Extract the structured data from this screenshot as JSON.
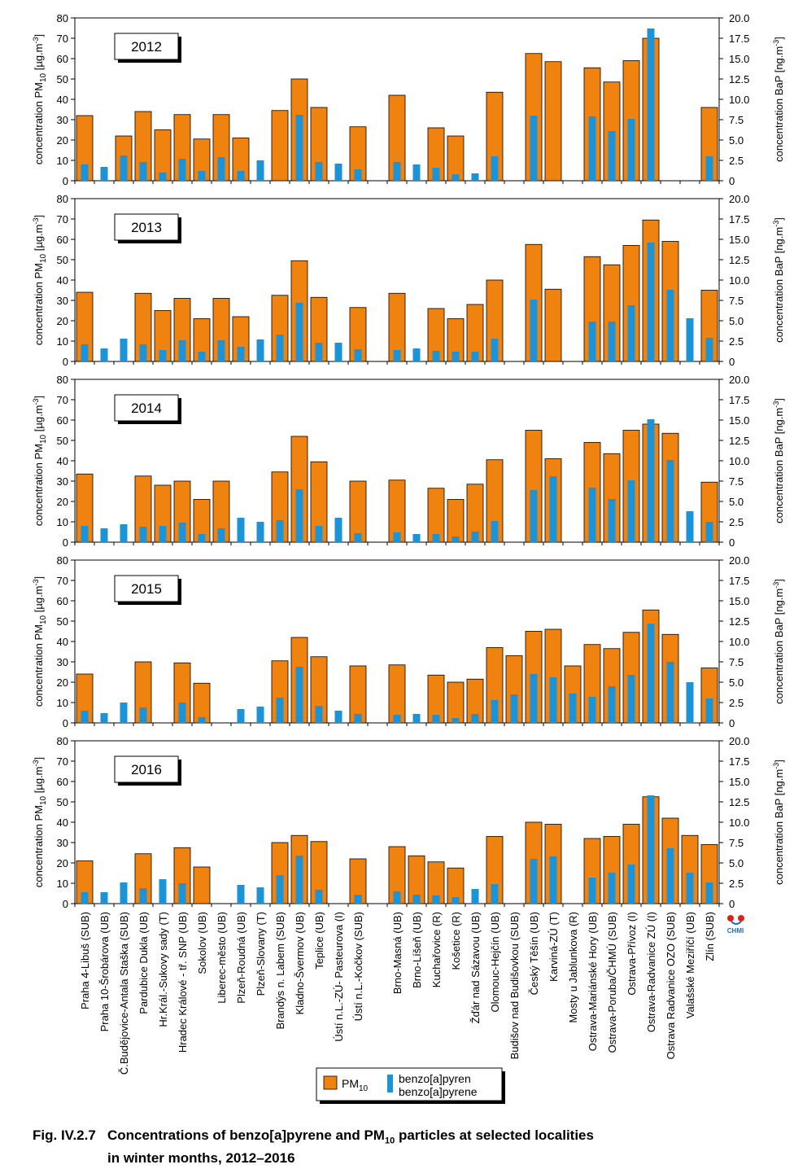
{
  "chart_data": {
    "type": "bar",
    "left_axis_label": "concentration PM",
    "left_axis_sub": "10",
    "left_axis_unit": "[µg.m",
    "left_axis_sup": "-3",
    "left_axis_close": "]",
    "right_axis_label": "concentration BaP [ng.m",
    "right_axis_sup": "-3",
    "right_axis_close": "]",
    "left_ylim": [
      0,
      80
    ],
    "right_ylim": [
      0,
      20
    ],
    "left_ticks": [
      "0",
      "10",
      "20",
      "30",
      "40",
      "50",
      "60",
      "70",
      "80"
    ],
    "right_ticks": [
      "0",
      "2.5",
      "5.0",
      "7.5",
      "10.0",
      "12.5",
      "15.0",
      "17.5",
      "20.0"
    ],
    "categories": [
      "Praha 4-Libuš (SUB)",
      "Praha 10-Šrobárova (UB)",
      "Č.Budějovice-Antala Staška (SUB)",
      "Pardubice Dukla (UB)",
      "Hr.Král.-Sukovy sady (T)",
      "Hradec Králové - tř. SNP (UB)",
      "Sokolov (UB)",
      "Liberec-město (UB)",
      "Plzeň-Roudná (UB)",
      "Plzeň-Slovany (T)",
      "Brandýs n. Labem (SUB)",
      "Kladno-Švermov (UB)",
      "Teplice (UB)",
      "Ústí n.L.-ZÚ- Pasteurova (I)",
      "Ústí n.L.-Kočkov (SUB)",
      "",
      "Brno-Masná (UB)",
      "Brno-Líšeň (UB)",
      "Kuchařovice (R)",
      "Košetice (R)",
      "Žďár nad Sázavou (UB)",
      "Olomouc-Hejčín (UB)",
      "Budišov nad Budišovkou (SUB)",
      "Český Těšín (UB)",
      "Karviná-ZÚ (T)",
      "Mosty u Jablunkova (R)",
      "Ostrava-Mariánské Hory (UB)",
      "Ostrava-Poruba/ČHMÚ (SUB)",
      "Ostrava-Přívoz (I)",
      "Ostrava-Radvanice ZÚ (I)",
      "Ostrava Radvanice OZO (SUB)",
      "Valašské Meziříčí (UB)",
      "Zlín (SUB)"
    ],
    "panels": [
      {
        "year": "2012",
        "pm10": [
          32,
          null,
          22,
          34,
          25,
          32.5,
          20.5,
          32.5,
          21,
          null,
          34.5,
          50,
          36,
          null,
          26.5,
          null,
          42,
          null,
          26,
          22,
          null,
          43.5,
          null,
          62.5,
          58.5,
          null,
          55.5,
          48.5,
          59,
          70,
          null,
          null,
          36
        ],
        "bap": [
          2,
          1.7,
          3.1,
          2.3,
          1.0,
          2.7,
          1.2,
          2.9,
          1.2,
          2.5,
          null,
          8.1,
          2.3,
          2.1,
          1.4,
          null,
          2.3,
          2.0,
          1.6,
          0.8,
          0.9,
          3.0,
          null,
          8.0,
          null,
          null,
          7.9,
          6.1,
          7.6,
          18.7,
          null,
          null,
          3.0
        ]
      },
      {
        "year": "2013",
        "pm10": [
          34,
          null,
          null,
          33.5,
          25,
          31,
          21,
          31,
          22,
          null,
          32.5,
          49.5,
          31.5,
          null,
          26.5,
          null,
          33.5,
          null,
          26,
          21,
          28,
          40,
          null,
          57.5,
          35.5,
          null,
          51.5,
          47.5,
          57,
          69.5,
          59,
          null,
          35
        ],
        "bap": [
          2.1,
          1.6,
          2.8,
          2.1,
          1.4,
          2.6,
          1.2,
          2.6,
          1.8,
          2.7,
          3.3,
          7.2,
          2.3,
          2.3,
          1.5,
          null,
          1.4,
          1.6,
          1.3,
          1.2,
          1.2,
          2.8,
          null,
          7.6,
          null,
          null,
          4.9,
          4.9,
          6.9,
          14.6,
          8.8,
          5.3,
          2.9
        ]
      },
      {
        "year": "2014",
        "pm10": [
          33.5,
          null,
          null,
          32.5,
          28,
          30,
          21,
          30,
          null,
          null,
          34.5,
          52,
          39.5,
          null,
          30,
          null,
          30.5,
          null,
          26.5,
          21,
          28.5,
          40.5,
          null,
          55,
          41,
          null,
          49,
          43.5,
          55,
          58,
          53.5,
          null,
          29.5
        ],
        "bap": [
          2.0,
          1.7,
          2.2,
          1.9,
          2.0,
          2.4,
          1.0,
          1.7,
          3.0,
          2.5,
          2.7,
          6.5,
          2.0,
          3.0,
          1.1,
          null,
          1.2,
          1.0,
          1.0,
          0.7,
          1.3,
          2.6,
          null,
          6.4,
          8.1,
          null,
          6.7,
          5.3,
          7.6,
          15.1,
          10.1,
          3.8,
          2.5
        ]
      },
      {
        "year": "2015",
        "pm10": [
          24,
          null,
          null,
          30,
          null,
          29.5,
          19.5,
          null,
          null,
          null,
          30.5,
          42,
          32.5,
          null,
          28,
          null,
          28.5,
          null,
          23.5,
          20,
          21.5,
          37,
          33,
          45,
          46,
          28,
          38.5,
          36.5,
          44.5,
          55.5,
          43.5,
          null,
          27
        ],
        "bap": [
          1.5,
          1.2,
          2.5,
          1.9,
          null,
          2.5,
          0.7,
          null,
          1.7,
          2.0,
          3.1,
          6.9,
          2.1,
          1.5,
          1.1,
          null,
          1.0,
          1.1,
          1.0,
          0.6,
          1.1,
          2.8,
          3.5,
          6.0,
          5.6,
          3.6,
          3.2,
          4.5,
          5.9,
          12.2,
          7.5,
          5.0,
          3.0
        ]
      },
      {
        "year": "2016",
        "pm10": [
          21,
          null,
          null,
          24.5,
          null,
          27.5,
          18,
          null,
          null,
          null,
          30,
          33.5,
          30.5,
          null,
          22,
          null,
          28,
          23.5,
          20.5,
          17.5,
          null,
          33,
          null,
          40,
          39,
          null,
          32,
          33,
          39,
          52.5,
          42,
          33.5,
          29
        ],
        "bap": [
          1.4,
          1.4,
          2.6,
          1.9,
          3.0,
          2.5,
          null,
          null,
          2.3,
          2.0,
          3.5,
          5.9,
          1.7,
          null,
          1.1,
          null,
          1.5,
          1.1,
          1.0,
          0.8,
          1.8,
          2.4,
          null,
          5.5,
          5.8,
          null,
          3.2,
          3.8,
          4.8,
          13.3,
          6.8,
          3.8,
          2.6
        ]
      }
    ],
    "series": [
      {
        "name": "PM10",
        "color": "#f0820f"
      },
      {
        "name": "benzo[a]pyren / benzo[a]pyrene",
        "color": "#1c93d6"
      }
    ],
    "legend": {
      "pm_text": "PM",
      "pm_sub": "10",
      "bap_line1": "benzo[a]pyren",
      "bap_line2": "benzo[a]pyrene",
      "placement": "bottom-center"
    },
    "logo_text": "CHMI"
  },
  "caption": {
    "fig_number": "Fig. IV.2.7",
    "line1_pre": "Concentrations of benzo[a]pyrene and PM",
    "line1_sub": "10",
    "line1_post": " particles at selected localities",
    "line2": "in winter months, 2012–2016"
  }
}
